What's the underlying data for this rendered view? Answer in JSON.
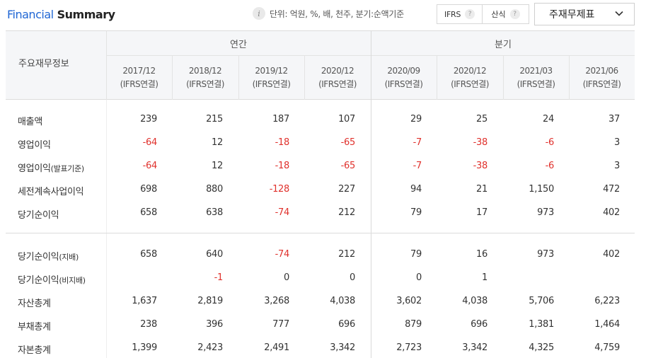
{
  "title": {
    "highlight": "Financial",
    "rest": "Summary"
  },
  "info": {
    "icon": "i",
    "text": "단위: 억원, %, 배, 천주, 분기:순액기준"
  },
  "toggles": {
    "ifrs": "IFRS",
    "formula": "산식",
    "help_glyph": "?"
  },
  "dropdown": {
    "selected": "주재무제표"
  },
  "table": {
    "corner_label": "주요재무정보",
    "groups": [
      {
        "label": "연간"
      },
      {
        "label": "분기"
      }
    ],
    "periods": [
      {
        "date": "2017/12",
        "basis": "(IFRS연결)"
      },
      {
        "date": "2018/12",
        "basis": "(IFRS연결)"
      },
      {
        "date": "2019/12",
        "basis": "(IFRS연결)"
      },
      {
        "date": "2020/12",
        "basis": "(IFRS연결)"
      },
      {
        "date": "2020/09",
        "basis": "(IFRS연결)"
      },
      {
        "date": "2020/12",
        "basis": "(IFRS연결)"
      },
      {
        "date": "2021/03",
        "basis": "(IFRS연결)"
      },
      {
        "date": "2021/06",
        "basis": "(IFRS연결)"
      }
    ],
    "rows": [
      {
        "label": "매출액",
        "sub": "",
        "values": [
          "239",
          "215",
          "187",
          "107",
          "29",
          "25",
          "24",
          "37"
        ]
      },
      {
        "label": "영업이익",
        "sub": "",
        "values": [
          "-64",
          "12",
          "-18",
          "-65",
          "-7",
          "-38",
          "-6",
          "3"
        ]
      },
      {
        "label": "영업이익",
        "sub": "(발표기준)",
        "values": [
          "-64",
          "12",
          "-18",
          "-65",
          "-7",
          "-38",
          "-6",
          "3"
        ]
      },
      {
        "label": "세전계속사업이익",
        "sub": "",
        "values": [
          "698",
          "880",
          "-128",
          "227",
          "94",
          "21",
          "1,150",
          "472"
        ]
      },
      {
        "label": "당기순이익",
        "sub": "",
        "values": [
          "658",
          "638",
          "-74",
          "212",
          "79",
          "17",
          "973",
          "402"
        ]
      },
      {
        "label": "당기순이익",
        "sub": "(지배)",
        "values": [
          "658",
          "640",
          "-74",
          "212",
          "79",
          "16",
          "973",
          "402"
        ]
      },
      {
        "label": "당기순이익",
        "sub": "(비지배)",
        "values": [
          "",
          "-1",
          "0",
          "0",
          "0",
          "1",
          "",
          ""
        ]
      },
      {
        "label": "자산총계",
        "sub": "",
        "values": [
          "1,637",
          "2,819",
          "3,268",
          "4,038",
          "3,602",
          "4,038",
          "5,706",
          "6,223"
        ]
      },
      {
        "label": "부채총계",
        "sub": "",
        "values": [
          "238",
          "396",
          "777",
          "696",
          "879",
          "696",
          "1,381",
          "1,464"
        ]
      },
      {
        "label": "자본총계",
        "sub": "",
        "values": [
          "1,399",
          "2,423",
          "2,491",
          "3,342",
          "2,723",
          "3,342",
          "4,325",
          "4,759"
        ]
      }
    ]
  },
  "colors": {
    "accent": "#1f66d4",
    "negative": "#e0312c",
    "header_bg": "#f5f6f8"
  }
}
